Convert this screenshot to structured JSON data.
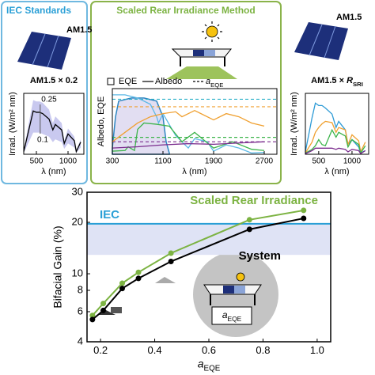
{
  "panels": {
    "left": {
      "title": "IEC Standards",
      "label": "AM1.5"
    },
    "middle": {
      "title": "Scaled Rear Irradiance Method"
    },
    "right": {
      "label": "AM1.5"
    }
  },
  "chart_data": [
    {
      "type": "line",
      "y_label": "Bifacial Gain (%)",
      "x_label": {
        "italic": "a",
        "sub": "EQE"
      },
      "xlim": [
        0.15,
        1.05
      ],
      "xticks": [
        0.2,
        0.4,
        0.6,
        0.8,
        {
          "value": 1.0,
          "label": "1.0"
        }
      ],
      "ylim": [
        4,
        30
      ],
      "yticks": [
        4,
        6,
        8,
        10,
        20,
        30
      ],
      "log_y": true,
      "grid": false,
      "iec": {
        "label": "IEC",
        "value": 19.6,
        "band": [
          12.9,
          19.6
        ],
        "color": "#2a9fd6",
        "band_color": "#dfe3f5"
      },
      "series": [
        {
          "name": "Scaled Rear Irradiance",
          "color": "#7cb342",
          "x": [
            0.17,
            0.21,
            0.28,
            0.34,
            0.46,
            0.75,
            0.95
          ],
          "values": [
            5.7,
            6.7,
            8.8,
            10.2,
            13.2,
            20.7,
            23.5
          ]
        },
        {
          "name": "System",
          "color": "#000000",
          "x": [
            0.17,
            0.21,
            0.28,
            0.34,
            0.46,
            0.75,
            0.95
          ],
          "values": [
            5.4,
            6.1,
            8.2,
            9.4,
            11.8,
            18.2,
            21.1
          ]
        }
      ]
    },
    {
      "type": "line",
      "title": "AM1.5 × 0.2",
      "y_label": "Irrad. (W/m² nm)",
      "x_label": "λ (nm)",
      "xlim": [
        300,
        1250
      ],
      "xticks": [
        500,
        1000
      ],
      "ylim": [
        0,
        0.45
      ],
      "annotations": [
        "0.25",
        "0.1"
      ],
      "band": {
        "color": "#c9c9ef",
        "upper": [
          0.03,
          0.28,
          0.4,
          0.39,
          0.39,
          0.38,
          0.33,
          0.23,
          0.28,
          0.23,
          0.1,
          0.19,
          0.13,
          0.03,
          0.11
        ],
        "lower": [
          0.01,
          0.11,
          0.16,
          0.16,
          0.16,
          0.15,
          0.13,
          0.09,
          0.11,
          0.09,
          0.04,
          0.08,
          0.05,
          0.01,
          0.05
        ]
      },
      "x": [
        300,
        400,
        450,
        500,
        550,
        600,
        700,
        760,
        800,
        900,
        940,
        1000,
        1100,
        1130,
        1200
      ],
      "series": [
        {
          "color": "#000000",
          "values": [
            0.02,
            0.22,
            0.32,
            0.31,
            0.31,
            0.3,
            0.26,
            0.18,
            0.22,
            0.18,
            0.08,
            0.15,
            0.1,
            0.02,
            0.09
          ]
        }
      ]
    },
    {
      "type": "line",
      "y_label": "Albedo, EQE",
      "x_label": "λ (nm)",
      "xlim": [
        300,
        2900
      ],
      "xticks": [
        300,
        1100,
        1900,
        2700
      ],
      "ylim": [
        0,
        1.05
      ],
      "legend": [
        "EQE",
        "Albedo",
        {
          "italic": "a",
          "sub": "EQE"
        }
      ],
      "eqe": {
        "color": "#2e86c1",
        "fill": "#e2def2",
        "x": [
          300,
          350,
          400,
          600,
          800,
          1000,
          1100,
          1150,
          1200
        ],
        "values": [
          0.1,
          0.6,
          0.85,
          0.9,
          0.9,
          0.85,
          0.6,
          0.2,
          0.02
        ]
      },
      "a_eqe": [
        {
          "color": "#2ab0c8",
          "value": 0.88
        },
        {
          "color": "#f0a030",
          "value": 0.76
        },
        {
          "color": "#3cb44b",
          "value": 0.27
        },
        {
          "color": "#7b2d8e",
          "value": 0.2
        }
      ],
      "series": [
        {
          "color": "#5bb8e6",
          "x": [
            300,
            500,
            700,
            900,
            1000,
            1030,
            1100,
            1300,
            1500,
            1600,
            1800,
            1900,
            2100,
            2300,
            2500,
            2700
          ],
          "values": [
            0.95,
            0.95,
            0.9,
            0.8,
            0.6,
            0.5,
            0.65,
            0.3,
            0.1,
            0.25,
            0.2,
            0.05,
            0.15,
            0.1,
            0.02,
            0.03
          ]
        },
        {
          "color": "#f0a030",
          "x": [
            300,
            500,
            700,
            900,
            1100,
            1300,
            1400,
            1600,
            1900,
            2100,
            2300,
            2500,
            2700
          ],
          "values": [
            0.2,
            0.35,
            0.5,
            0.6,
            0.65,
            0.68,
            0.6,
            0.7,
            0.55,
            0.65,
            0.6,
            0.5,
            0.45
          ]
        },
        {
          "color": "#3cb44b",
          "x": [
            300,
            500,
            550,
            650,
            700,
            800,
            1000,
            1200,
            1400,
            1600,
            1900,
            2200,
            2500,
            2700
          ],
          "values": [
            0.05,
            0.06,
            0.12,
            0.06,
            0.4,
            0.5,
            0.48,
            0.45,
            0.2,
            0.35,
            0.1,
            0.2,
            0.08,
            0.06
          ]
        },
        {
          "color": "#7b2d8e",
          "x": [
            300,
            700,
            1100,
            1500,
            1900,
            2300,
            2700
          ],
          "values": [
            0.1,
            0.12,
            0.15,
            0.17,
            0.16,
            0.18,
            0.2
          ]
        }
      ]
    },
    {
      "type": "line",
      "title": {
        "text": "AM1.5 × ",
        "italic": "R",
        "sub": "SRI"
      },
      "y_label": "Irrad. (W/m² nm)",
      "x_label": "λ (nm)",
      "xlim": [
        300,
        1250
      ],
      "xticks": [
        500,
        1000
      ],
      "ylim": [
        0,
        0.5
      ],
      "x": [
        300,
        400,
        450,
        500,
        550,
        600,
        700,
        760,
        800,
        900,
        940,
        1000,
        1100,
        1130,
        1200
      ],
      "series": [
        {
          "color": "#2e9bd6",
          "values": [
            0.02,
            0.3,
            0.42,
            0.4,
            0.4,
            0.38,
            0.33,
            0.22,
            0.27,
            0.2,
            0.08,
            0.12,
            0.06,
            0.01,
            0.03
          ]
        },
        {
          "color": "#f0a030",
          "values": [
            0.01,
            0.1,
            0.18,
            0.22,
            0.25,
            0.27,
            0.26,
            0.18,
            0.22,
            0.2,
            0.08,
            0.16,
            0.11,
            0.02,
            0.1
          ]
        },
        {
          "color": "#3cb44b",
          "values": [
            0.01,
            0.04,
            0.07,
            0.12,
            0.08,
            0.07,
            0.2,
            0.14,
            0.18,
            0.15,
            0.06,
            0.12,
            0.08,
            0.01,
            0.07
          ]
        },
        {
          "color": "#7b2d8e",
          "values": [
            0.005,
            0.03,
            0.05,
            0.05,
            0.05,
            0.05,
            0.05,
            0.04,
            0.05,
            0.04,
            0.02,
            0.04,
            0.03,
            0.005,
            0.03
          ]
        }
      ]
    }
  ]
}
